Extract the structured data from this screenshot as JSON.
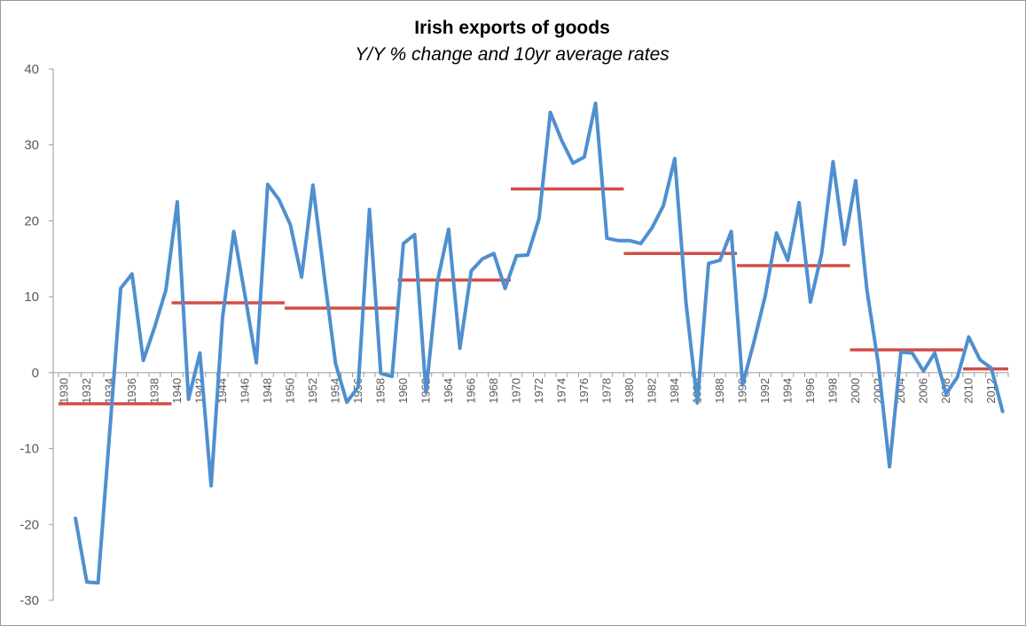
{
  "chart_data": {
    "type": "line",
    "title": "Irish exports of goods",
    "subtitle": "Y/Y % change and 10yr average rates",
    "xlabel": "",
    "ylabel": "",
    "ylim": [
      -30,
      40
    ],
    "yticks": [
      -30,
      -20,
      -10,
      0,
      10,
      20,
      30,
      40
    ],
    "x_tick_labels": [
      "1930",
      "1932",
      "1934",
      "1936",
      "1938",
      "1940",
      "1942",
      "1944",
      "1946",
      "1948",
      "1950",
      "1952",
      "1954",
      "1956",
      "1958",
      "1960",
      "1962",
      "1964",
      "1966",
      "1968",
      "1970",
      "1972",
      "1974",
      "1976",
      "1978",
      "1980",
      "1982",
      "1984",
      "1986",
      "1988",
      "1990",
      "1992",
      "1994",
      "1996",
      "1998",
      "2000",
      "2002",
      "2004",
      "2006",
      "2008",
      "2010",
      "2012"
    ],
    "grid": false,
    "legend": "none",
    "series": [
      {
        "color": "#4f8fcf",
        "x": [
          1931,
          1932,
          1933,
          1934,
          1935,
          1936,
          1937,
          1938,
          1939,
          1940,
          1941,
          1942,
          1943,
          1944,
          1945,
          1946,
          1947,
          1948,
          1949,
          1950,
          1951,
          1952,
          1953,
          1954,
          1955,
          1956,
          1957,
          1958,
          1959,
          1960,
          1961,
          1962,
          1963,
          1964,
          1965,
          1966,
          1967,
          1968,
          1969,
          1970,
          1971,
          1972,
          1973,
          1974,
          1975,
          1976,
          1977,
          1978,
          1979,
          1980,
          1981,
          1982,
          1983,
          1984,
          1985,
          1986,
          1987,
          1988,
          1989,
          1990,
          1991,
          1992,
          1993,
          1994,
          1995,
          1996,
          1997,
          1998,
          1999,
          2000,
          2001,
          2002,
          2003,
          2004,
          2005,
          2006,
          2007,
          2008,
          2009,
          2010,
          2011,
          2012,
          2013
        ],
        "values": [
          -19.2,
          -27.6,
          -27.7,
          -8.3,
          11.1,
          13.0,
          1.6,
          6.0,
          10.9,
          22.5,
          -3.5,
          2.6,
          -14.9,
          7.2,
          18.6,
          10.1,
          1.3,
          24.8,
          22.8,
          19.5,
          12.6,
          24.7,
          12.8,
          1.2,
          -3.9,
          -1.9,
          21.5,
          -0.1,
          -0.5,
          17.0,
          18.2,
          -2.6,
          11.9,
          18.9,
          3.2,
          13.4,
          15.0,
          15.7,
          11.1,
          15.4,
          15.5,
          20.3,
          34.3,
          30.6,
          27.6,
          28.4,
          35.5,
          17.7,
          17.4,
          17.4,
          17.0,
          19.1,
          22.0,
          28.2,
          9.2,
          -4.0,
          14.4,
          14.8,
          18.6,
          -1.6,
          4.0,
          10.1,
          18.4,
          14.8,
          22.4,
          9.3,
          15.7,
          27.8,
          16.9,
          25.3,
          10.9,
          1.2,
          -12.4,
          2.7,
          2.6,
          0.2,
          2.6,
          -2.8,
          -0.6,
          4.7,
          1.7,
          0.6,
          -5.1
        ]
      }
    ],
    "averages": {
      "color": "#d24e47",
      "segments": [
        {
          "from": 1930,
          "to": 1939,
          "value": -4.1
        },
        {
          "from": 1940,
          "to": 1949,
          "value": 9.2
        },
        {
          "from": 1950,
          "to": 1959,
          "value": 8.5
        },
        {
          "from": 1960,
          "to": 1969,
          "value": 12.2
        },
        {
          "from": 1970,
          "to": 1979,
          "value": 24.2
        },
        {
          "from": 1980,
          "to": 1989,
          "value": 15.7
        },
        {
          "from": 1990,
          "to": 1999,
          "value": 14.1
        },
        {
          "from": 2000,
          "to": 2009,
          "value": 3.0
        },
        {
          "from": 2010,
          "to": 2013,
          "value": 0.5
        }
      ]
    }
  }
}
